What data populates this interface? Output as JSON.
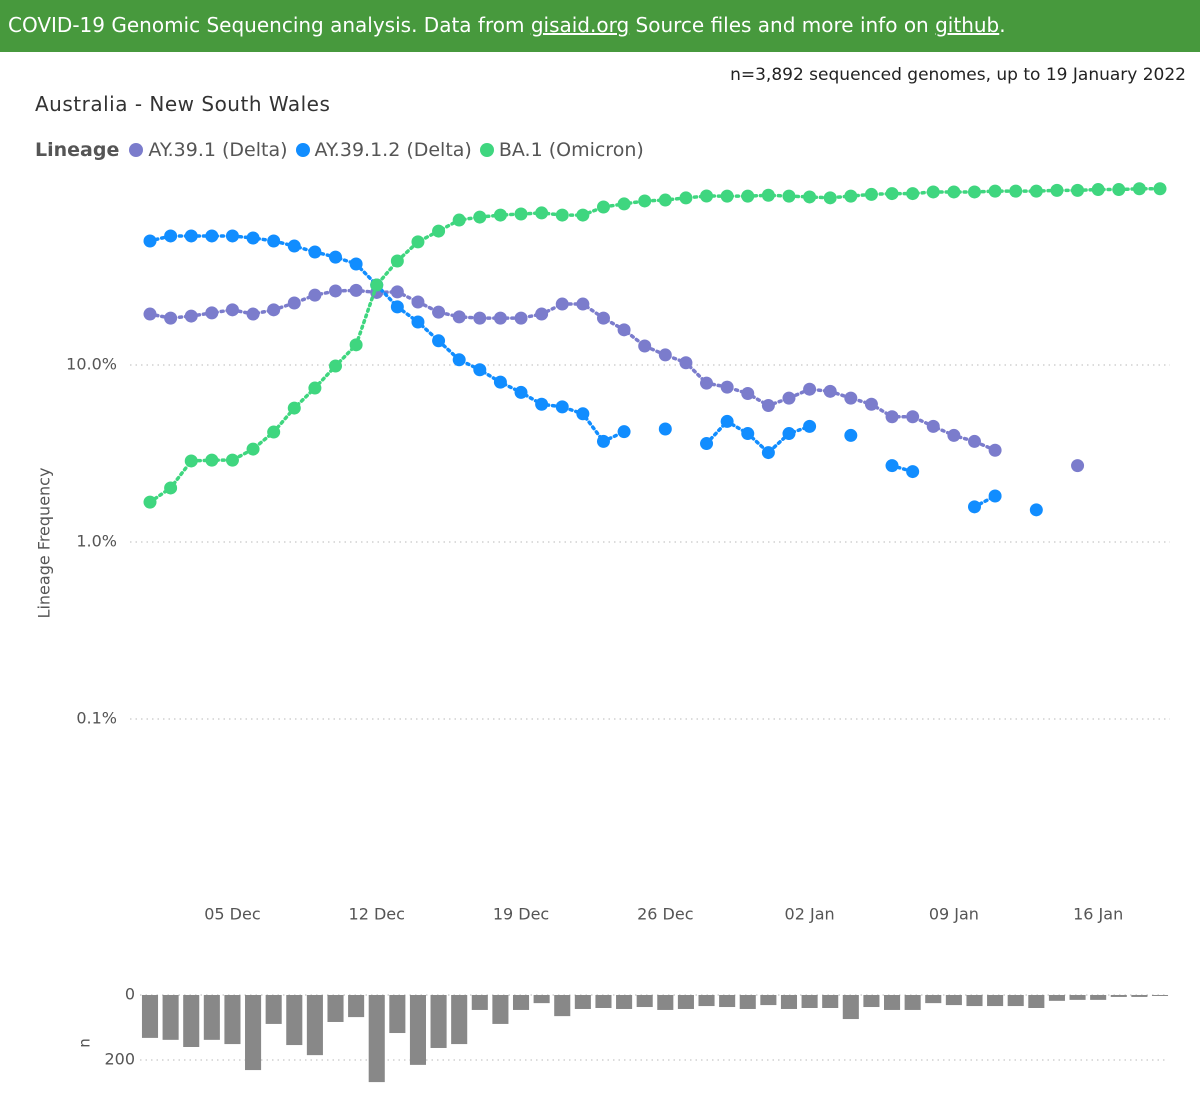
{
  "header": {
    "text_before": "COVID-19 Genomic Sequencing analysis. Data from ",
    "link1": "gisaid.org",
    "text_middle": " Source files and more info on ",
    "link2": "github",
    "text_after": "."
  },
  "subtitle": "n=3,892 sequenced genomes, up to 19 January 2022",
  "chart_data": [
    {
      "type": "line",
      "title": "Australia - New South Wales",
      "legend_title": "Lineage",
      "ylabel": "Lineage Frequency",
      "log_scale": true,
      "grid": true,
      "categories": [
        "01 Dec",
        "02 Dec",
        "03 Dec",
        "04 Dec",
        "05 Dec",
        "06 Dec",
        "07 Dec",
        "08 Dec",
        "09 Dec",
        "10 Dec",
        "11 Dec",
        "12 Dec",
        "13 Dec",
        "14 Dec",
        "15 Dec",
        "16 Dec",
        "17 Dec",
        "18 Dec",
        "19 Dec",
        "20 Dec",
        "21 Dec",
        "22 Dec",
        "23 Dec",
        "24 Dec",
        "25 Dec",
        "26 Dec",
        "27 Dec",
        "28 Dec",
        "29 Dec",
        "30 Dec",
        "31 Dec",
        "01 Jan",
        "02 Jan",
        "03 Jan",
        "04 Jan",
        "05 Jan",
        "06 Jan",
        "07 Jan",
        "08 Jan",
        "09 Jan",
        "10 Jan",
        "11 Jan",
        "12 Jan",
        "13 Jan",
        "14 Jan",
        "15 Jan",
        "16 Jan",
        "17 Jan",
        "18 Jan",
        "19 Jan"
      ],
      "xticks": [
        "05 Dec",
        "12 Dec",
        "19 Dec",
        "26 Dec",
        "02 Jan",
        "09 Jan",
        "16 Jan"
      ],
      "ylim": [
        0.01,
        100
      ],
      "yticks": [
        {
          "value": 0.1,
          "label": "0.1%"
        },
        {
          "value": 1,
          "label": "1.0%"
        },
        {
          "value": 10,
          "label": "10.0%"
        }
      ],
      "series": [
        {
          "name": "AY.39.1 (Delta)",
          "color": "#7b7ccc",
          "values": [
            19.4,
            18.4,
            18.9,
            19.7,
            20.5,
            19.4,
            20.5,
            22.4,
            24.8,
            26.2,
            26.4,
            25.7,
            25.9,
            22.7,
            19.9,
            18.7,
            18.4,
            18.4,
            18.4,
            19.4,
            22.1,
            22.1,
            18.4,
            15.8,
            12.8,
            11.4,
            10.3,
            7.9,
            7.5,
            6.9,
            5.9,
            6.5,
            7.3,
            7.1,
            6.5,
            6.0,
            5.1,
            5.1,
            4.5,
            4.0,
            3.7,
            3.3,
            null,
            null,
            null,
            2.7,
            null,
            null,
            null,
            null
          ]
        },
        {
          "name": "AY.39.1.2 (Delta)",
          "color": "#118dff",
          "values": [
            50.2,
            53.6,
            53.6,
            53.6,
            53.6,
            52.2,
            50.2,
            47.0,
            43.5,
            40.7,
            37.2,
            28.3,
            21.3,
            17.5,
            13.7,
            10.7,
            9.4,
            8.0,
            7.0,
            6.0,
            5.8,
            5.3,
            3.7,
            4.2,
            null,
            4.35,
            null,
            3.6,
            4.8,
            4.1,
            3.2,
            4.1,
            4.5,
            null,
            4.0,
            null,
            2.7,
            2.5,
            null,
            null,
            1.58,
            1.82,
            null,
            1.52,
            null,
            null,
            null,
            null,
            null,
            null
          ]
        },
        {
          "name": "BA.1 (Omicron)",
          "color": "#3fd67f",
          "values": [
            1.68,
            2.02,
            2.87,
            2.9,
            2.9,
            3.35,
            4.18,
            5.71,
            7.41,
            9.87,
            13.0,
            28.3,
            38.7,
            49.6,
            57.1,
            65.9,
            68.5,
            70.3,
            71.3,
            72.3,
            70.3,
            70.3,
            78.1,
            81.3,
            84.5,
            85.5,
            87.9,
            90.1,
            90,
            90,
            91,
            90,
            89,
            88,
            90,
            92,
            93,
            93,
            95,
            95,
            95,
            96,
            96,
            96,
            97,
            97,
            98,
            98,
            99,
            99
          ]
        }
      ]
    },
    {
      "type": "bar",
      "ylabel": "n",
      "inverted": true,
      "color": "#888888",
      "grid": true,
      "ylim": [
        0,
        280
      ],
      "yticks": [
        0,
        200
      ],
      "values": [
        132,
        138,
        160,
        138,
        151,
        231,
        89,
        154,
        185,
        83,
        68,
        268,
        117,
        215,
        163,
        151,
        46,
        89,
        46,
        25,
        65,
        43,
        40,
        43,
        37,
        46,
        43,
        34,
        37,
        43,
        31,
        43,
        40,
        40,
        74,
        37,
        46,
        46,
        25,
        31,
        34,
        34,
        34,
        40,
        18,
        15,
        15,
        6,
        6,
        3
      ]
    }
  ]
}
